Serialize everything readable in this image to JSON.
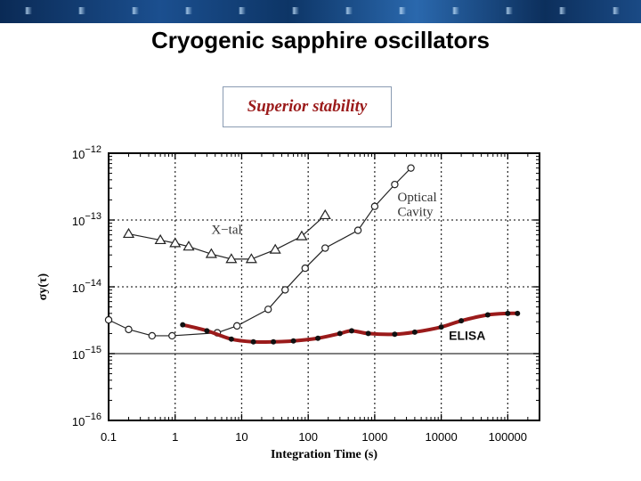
{
  "slide_title": "Cryogenic sapphire oscillators",
  "callout": "Superior stability",
  "chart_data": {
    "type": "line",
    "xlabel": "Integration Time (s)",
    "ylabel": "σy(τ)",
    "x_scale": "log",
    "y_scale": "log",
    "xlim": [
      0.1,
      300000
    ],
    "ylim": [
      1e-16,
      1e-12
    ],
    "x_ticks": [
      {
        "value": 0.1,
        "label": "0.1"
      },
      {
        "value": 1,
        "label": "1"
      },
      {
        "value": 10,
        "label": "10"
      },
      {
        "value": 100,
        "label": "100"
      },
      {
        "value": 1000,
        "label": "1000"
      },
      {
        "value": 10000,
        "label": "10000"
      },
      {
        "value": 100000,
        "label": "100000"
      }
    ],
    "y_ticks": [
      {
        "value": 1e-12,
        "base": "10",
        "exp": "−12"
      },
      {
        "value": 1e-13,
        "base": "10",
        "exp": "−13"
      },
      {
        "value": 1e-14,
        "base": "10",
        "exp": "−14"
      },
      {
        "value": 1e-15,
        "base": "10",
        "exp": "−15"
      },
      {
        "value": 1e-16,
        "base": "10",
        "exp": "−16"
      }
    ],
    "grid": true,
    "annotations": [
      {
        "text": "X−tal",
        "x": 3.5,
        "y": 6.2e-14
      },
      {
        "text": "Optical",
        "x": 2200,
        "y": 1.9e-13
      },
      {
        "text": "Cavity",
        "x": 2200,
        "y": 1.15e-13
      },
      {
        "text": "ELISA",
        "x": 13000,
        "y": 1.6e-15
      }
    ],
    "series": [
      {
        "name": "X−tal",
        "marker": "triangle",
        "color": "#222222",
        "x": [
          0.2,
          0.6,
          1,
          1.6,
          3.5,
          7,
          14,
          32,
          80,
          180
        ],
        "y": [
          6.2e-14,
          5e-14,
          4.5e-14,
          4e-14,
          3.1e-14,
          2.6e-14,
          2.6e-14,
          3.6e-14,
          5.7e-14,
          1.18e-13
        ]
      },
      {
        "name": "Optical Cavity",
        "marker": "circle",
        "color": "#222222",
        "x": [
          0.1,
          0.2,
          0.45,
          0.9,
          4.3,
          8.5,
          25,
          45,
          90,
          180,
          560,
          1000,
          2000,
          3500
        ],
        "y": [
          3.2e-15,
          2.3e-15,
          1.85e-15,
          1.85e-15,
          2.05e-15,
          2.6e-15,
          4.6e-15,
          9e-15,
          1.9e-14,
          3.8e-14,
          7e-14,
          1.6e-13,
          3.4e-13,
          6e-13
        ]
      },
      {
        "name": "ELISA",
        "marker": "dot",
        "color": "#9b1b1b",
        "x": [
          1.3,
          3,
          7,
          15,
          30,
          60,
          140,
          300,
          450,
          800,
          2000,
          4000,
          10000,
          20000,
          50000,
          100000,
          140000
        ],
        "y": [
          2.7e-15,
          2.2e-15,
          1.65e-15,
          1.5e-15,
          1.5e-15,
          1.55e-15,
          1.7e-15,
          2e-15,
          2.2e-15,
          2e-15,
          1.95e-15,
          2.1e-15,
          2.5e-15,
          3.1e-15,
          3.8e-15,
          4e-15,
          4e-15
        ]
      }
    ]
  }
}
